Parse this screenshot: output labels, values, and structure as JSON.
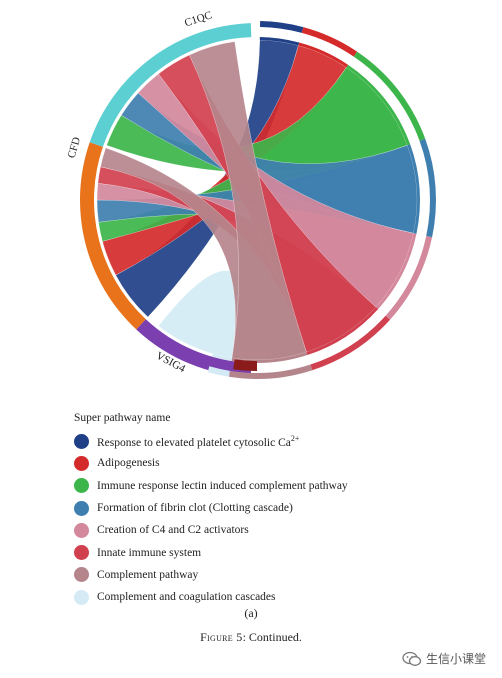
{
  "genes": [
    {
      "name": "C1QC",
      "color": "#5ccfd3"
    },
    {
      "name": "CFD",
      "color": "#e8731a"
    },
    {
      "name": "VSIG4",
      "color": "#7b3fb0"
    }
  ],
  "pathways": [
    {
      "name": "Response to elevated platelet cytosolic Ca",
      "sup": "2+",
      "color": "#1f3f87"
    },
    {
      "name": "Adipogenesis",
      "color": "#d42a2a"
    },
    {
      "name": "Immune response lectin induced complement pathway",
      "color": "#3cb54a"
    },
    {
      "name": "Formation of fibrin clot (Clotting cascade)",
      "color": "#3f7fb0"
    },
    {
      "name": "Creation of C4 and C2 activators",
      "color": "#d4889c"
    },
    {
      "name": "Innate immune system",
      "color": "#d1404f"
    },
    {
      "name": "Complement pathway",
      "color": "#b5858c"
    },
    {
      "name": "Complement and coagulation cascades",
      "color": "#d4ebf5"
    }
  ],
  "legend_title": "Super pathway name",
  "panel_label": "(a)",
  "caption": {
    "prefix": "Figure 5",
    "text": ": Continued."
  },
  "watermark": "生信小课堂"
}
